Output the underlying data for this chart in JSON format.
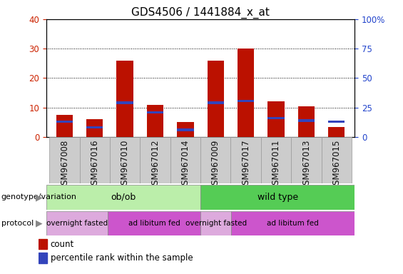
{
  "title": "GDS4506 / 1441884_x_at",
  "samples": [
    "GSM967008",
    "GSM967016",
    "GSM967010",
    "GSM967012",
    "GSM967014",
    "GSM967009",
    "GSM967017",
    "GSM967011",
    "GSM967013",
    "GSM967015"
  ],
  "count_values": [
    7.5,
    6.0,
    26.0,
    11.0,
    5.0,
    26.0,
    30.0,
    12.0,
    10.5,
    3.5
  ],
  "percentile_values": [
    13.0,
    8.0,
    29.0,
    21.0,
    6.0,
    29.0,
    30.5,
    16.0,
    14.0,
    13.0
  ],
  "bar_width": 0.55,
  "red_color": "#bb1100",
  "blue_color": "#3344bb",
  "ylim_left": [
    0,
    40
  ],
  "ylim_right": [
    0,
    100
  ],
  "yticks_left": [
    0,
    10,
    20,
    30,
    40
  ],
  "yticks_right": [
    0,
    25,
    50,
    75,
    100
  ],
  "grid_color": "black",
  "bg_color": "white",
  "plot_bg": "white",
  "xtick_bg": "#cccccc",
  "genotype_labels": [
    {
      "text": "ob/ob",
      "start": 0,
      "end": 5,
      "color": "#bbeeaa"
    },
    {
      "text": "wild type",
      "start": 5,
      "end": 10,
      "color": "#55cc55"
    }
  ],
  "protocol_labels": [
    {
      "text": "overnight fasted",
      "start": 0,
      "end": 2,
      "color": "#ddaadd"
    },
    {
      "text": "ad libitum fed",
      "start": 2,
      "end": 5,
      "color": "#cc55cc"
    },
    {
      "text": "overnight fasted",
      "start": 5,
      "end": 6,
      "color": "#ddaadd"
    },
    {
      "text": "ad libitum fed",
      "start": 6,
      "end": 10,
      "color": "#cc55cc"
    }
  ],
  "legend_count_label": "count",
  "legend_percentile_label": "percentile rank within the sample",
  "left_ytick_color": "#cc2200",
  "right_ytick_color": "#2244cc",
  "xlabel_color": "#111111",
  "title_fontsize": 11,
  "tick_fontsize": 8.5,
  "genotype_fontsize": 9,
  "protocol_fontsize": 7.5,
  "legend_fontsize": 8.5
}
